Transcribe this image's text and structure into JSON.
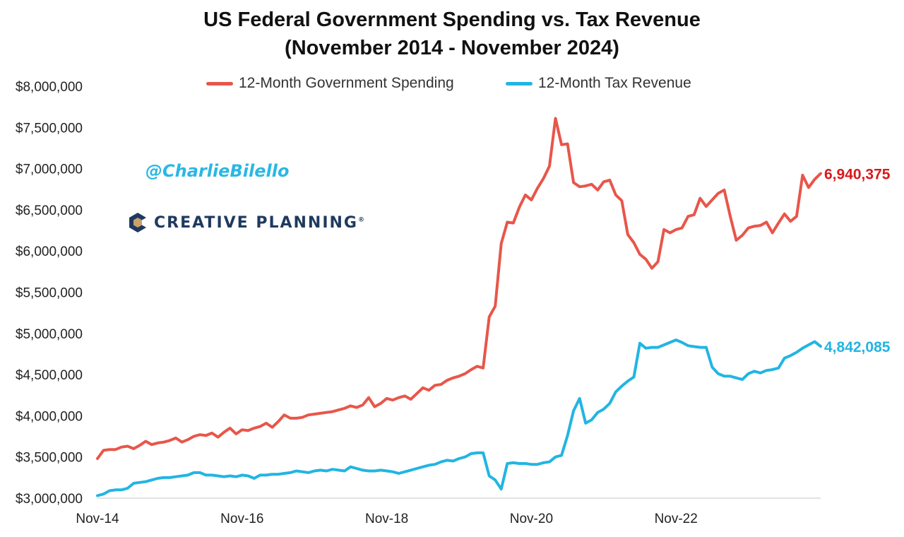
{
  "header": {
    "title_line1": "US Federal Government Spending vs. Tax Revenue",
    "title_line2": "(November 2014 - November 2024)"
  },
  "watermark": {
    "handle": "@CharlieBilello",
    "brand": "CREATIVE PLANNING",
    "brand_mark": "®"
  },
  "colors": {
    "spending": "#e8564a",
    "revenue": "#22b5e2",
    "spending_label": "#d8191c",
    "revenue_label": "#22b5e2"
  },
  "chart_data": {
    "type": "line",
    "title": "US Federal Government Spending vs. Tax Revenue (November 2014 - November 2024)",
    "ylim": [
      3000000,
      8000000
    ],
    "y_ticks": [
      {
        "value": 3000000,
        "label": "$3,000,000"
      },
      {
        "value": 3500000,
        "label": "$3,500,000"
      },
      {
        "value": 4000000,
        "label": "$4,000,000"
      },
      {
        "value": 4500000,
        "label": "$4,500,000"
      },
      {
        "value": 5000000,
        "label": "$5,000,000"
      },
      {
        "value": 5500000,
        "label": "$5,500,000"
      },
      {
        "value": 6000000,
        "label": "$6,000,000"
      },
      {
        "value": 6500000,
        "label": "$6,500,000"
      },
      {
        "value": 7000000,
        "label": "$7,000,000"
      },
      {
        "value": 7500000,
        "label": "$7,500,000"
      },
      {
        "value": 8000000,
        "label": "$8,000,000"
      }
    ],
    "x_ticks": [
      "Nov-14",
      "Nov-16",
      "Nov-18",
      "Nov-20",
      "Nov-22"
    ],
    "x_start": "Nov-14",
    "x_end": "Nov-24",
    "legend_position": "top",
    "grid": false,
    "series": [
      {
        "name": "12-Month Government Spending",
        "color": "#e8564a",
        "end_label": "6,940,375",
        "values": [
          3480000,
          3580000,
          3590000,
          3590000,
          3620000,
          3630000,
          3600000,
          3640000,
          3690000,
          3650000,
          3670000,
          3680000,
          3700000,
          3730000,
          3680000,
          3710000,
          3750000,
          3770000,
          3760000,
          3790000,
          3740000,
          3800000,
          3850000,
          3780000,
          3830000,
          3820000,
          3850000,
          3870000,
          3910000,
          3860000,
          3930000,
          4010000,
          3970000,
          3970000,
          3980000,
          4010000,
          4020000,
          4030000,
          4040000,
          4050000,
          4070000,
          4090000,
          4120000,
          4100000,
          4130000,
          4220000,
          4110000,
          4150000,
          4210000,
          4190000,
          4220000,
          4240000,
          4200000,
          4270000,
          4340000,
          4310000,
          4370000,
          4380000,
          4430000,
          4460000,
          4480000,
          4510000,
          4560000,
          4600000,
          4580000,
          5200000,
          5330000,
          6090000,
          6350000,
          6340000,
          6530000,
          6680000,
          6620000,
          6760000,
          6880000,
          7030000,
          7610000,
          7290000,
          7300000,
          6830000,
          6780000,
          6790000,
          6810000,
          6740000,
          6840000,
          6860000,
          6680000,
          6610000,
          6200000,
          6100000,
          5960000,
          5900000,
          5790000,
          5870000,
          6260000,
          6220000,
          6260000,
          6280000,
          6420000,
          6440000,
          6640000,
          6540000,
          6620000,
          6700000,
          6740000,
          6420000,
          6130000,
          6190000,
          6280000,
          6300000,
          6310000,
          6350000,
          6220000,
          6340000,
          6450000,
          6360000,
          6420000,
          6920000,
          6770000,
          6870000,
          6940375
        ]
      },
      {
        "name": "12-Month Tax Revenue",
        "color": "#22b5e2",
        "end_label": "4,842,085",
        "values": [
          3030000,
          3050000,
          3090000,
          3100000,
          3100000,
          3120000,
          3180000,
          3190000,
          3200000,
          3220000,
          3240000,
          3250000,
          3250000,
          3260000,
          3270000,
          3280000,
          3310000,
          3310000,
          3280000,
          3280000,
          3270000,
          3260000,
          3270000,
          3260000,
          3280000,
          3270000,
          3240000,
          3280000,
          3280000,
          3290000,
          3290000,
          3300000,
          3310000,
          3330000,
          3320000,
          3310000,
          3330000,
          3340000,
          3330000,
          3350000,
          3340000,
          3330000,
          3380000,
          3360000,
          3340000,
          3330000,
          3330000,
          3340000,
          3330000,
          3320000,
          3300000,
          3320000,
          3340000,
          3360000,
          3380000,
          3400000,
          3410000,
          3440000,
          3460000,
          3450000,
          3480000,
          3500000,
          3540000,
          3550000,
          3550000,
          3270000,
          3220000,
          3110000,
          3420000,
          3430000,
          3420000,
          3420000,
          3410000,
          3410000,
          3430000,
          3440000,
          3500000,
          3520000,
          3760000,
          4060000,
          4210000,
          3910000,
          3950000,
          4040000,
          4080000,
          4150000,
          4290000,
          4360000,
          4420000,
          4470000,
          4880000,
          4820000,
          4830000,
          4830000,
          4860000,
          4890000,
          4920000,
          4890000,
          4850000,
          4840000,
          4830000,
          4830000,
          4590000,
          4510000,
          4480000,
          4480000,
          4460000,
          4440000,
          4510000,
          4540000,
          4520000,
          4550000,
          4560000,
          4580000,
          4700000,
          4730000,
          4770000,
          4820000,
          4860000,
          4900000,
          4842085
        ]
      }
    ]
  }
}
